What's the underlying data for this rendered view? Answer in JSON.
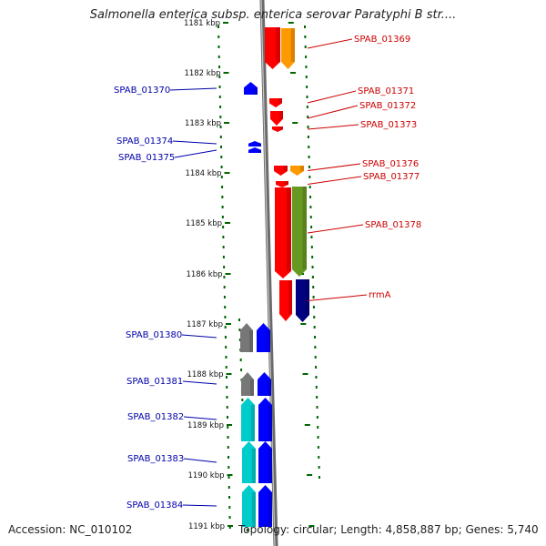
{
  "title": "Salmonella enterica subsp. enterica serovar Paratyphi B str....",
  "accession": "Accession: NC_010102",
  "summary": "Topology: circular; Length: 4,858,887 bp; Genes: 5,740",
  "colors": {
    "red": "#ff0000",
    "orange": "#ff9900",
    "olive": "#669922",
    "navy": "#000080",
    "blue": "#0000ff",
    "cyan": "#00cccc",
    "gray": "#777777",
    "tick": "#006600",
    "label_red": "#cc0000",
    "label_blue": "#0000aa"
  },
  "coordinates": [
    {
      "label": "1181 kbp"
    },
    {
      "label": "1182 kbp"
    },
    {
      "label": "1183 kbp"
    },
    {
      "label": "1184 kbp"
    },
    {
      "label": "1185 kbp"
    },
    {
      "label": "1186 kbp"
    },
    {
      "label": "1187 kbp"
    },
    {
      "label": "1188 kbp"
    },
    {
      "label": "1189 kbp"
    },
    {
      "label": "1190 kbp"
    },
    {
      "label": "1191 kbp"
    }
  ],
  "genes": [
    {
      "name": "SPAB_01369",
      "strand": "forward",
      "color": "red"
    },
    {
      "name": "SPAB_01369",
      "strand": "forward",
      "color": "orange"
    },
    {
      "name": "SPAB_01370",
      "strand": "reverse",
      "color": "blue"
    },
    {
      "name": "SPAB_01371",
      "strand": "forward",
      "color": "red"
    },
    {
      "name": "SPAB_01372",
      "strand": "forward",
      "color": "red"
    },
    {
      "name": "SPAB_01373",
      "strand": "forward",
      "color": "red"
    },
    {
      "name": "SPAB_01374",
      "strand": "reverse",
      "color": "blue"
    },
    {
      "name": "SPAB_01375",
      "strand": "reverse",
      "color": "blue"
    },
    {
      "name": "SPAB_01376",
      "strand": "forward",
      "color": "red"
    },
    {
      "name": "SPAB_01376",
      "strand": "forward",
      "color": "orange"
    },
    {
      "name": "SPAB_01377",
      "strand": "forward",
      "color": "red"
    },
    {
      "name": "SPAB_01378",
      "strand": "forward",
      "color": "red"
    },
    {
      "name": "SPAB_01378",
      "strand": "forward",
      "color": "olive"
    },
    {
      "name": "rrmA",
      "strand": "forward",
      "color": "red"
    },
    {
      "name": "rrmA",
      "strand": "forward",
      "color": "navy"
    },
    {
      "name": "SPAB_01380",
      "strand": "reverse",
      "color": "gray"
    },
    {
      "name": "SPAB_01380",
      "strand": "reverse",
      "color": "blue"
    },
    {
      "name": "SPAB_01381",
      "strand": "reverse",
      "color": "gray"
    },
    {
      "name": "SPAB_01381",
      "strand": "reverse",
      "color": "blue"
    },
    {
      "name": "SPAB_01382",
      "strand": "reverse",
      "color": "cyan"
    },
    {
      "name": "SPAB_01382",
      "strand": "reverse",
      "color": "blue"
    },
    {
      "name": "SPAB_01383",
      "strand": "reverse",
      "color": "cyan"
    },
    {
      "name": "SPAB_01383",
      "strand": "reverse",
      "color": "blue"
    },
    {
      "name": "SPAB_01384",
      "strand": "reverse",
      "color": "cyan"
    },
    {
      "name": "SPAB_01384",
      "strand": "reverse",
      "color": "blue"
    }
  ],
  "labels": [
    {
      "text": "SPAB_01369",
      "side": "right",
      "gene": 0
    },
    {
      "text": "SPAB_01370",
      "side": "left",
      "gene": 2
    },
    {
      "text": "SPAB_01371",
      "side": "right",
      "gene": 3
    },
    {
      "text": "SPAB_01372",
      "side": "right",
      "gene": 4
    },
    {
      "text": "SPAB_01373",
      "side": "right",
      "gene": 5
    },
    {
      "text": "SPAB_01374",
      "side": "left",
      "gene": 6
    },
    {
      "text": "SPAB_01375",
      "side": "left",
      "gene": 7
    },
    {
      "text": "SPAB_01376",
      "side": "right",
      "gene": 8
    },
    {
      "text": "SPAB_01377",
      "side": "right",
      "gene": 10
    },
    {
      "text": "SPAB_01378",
      "side": "right",
      "gene": 11
    },
    {
      "text": "rrmA",
      "side": "right",
      "gene": 13
    },
    {
      "text": "SPAB_01380",
      "side": "left",
      "gene": 15
    },
    {
      "text": "SPAB_01381",
      "side": "left",
      "gene": 17
    },
    {
      "text": "SPAB_01382",
      "side": "left",
      "gene": 19
    },
    {
      "text": "SPAB_01383",
      "side": "left",
      "gene": 21
    },
    {
      "text": "SPAB_01384",
      "side": "left",
      "gene": 23
    }
  ]
}
